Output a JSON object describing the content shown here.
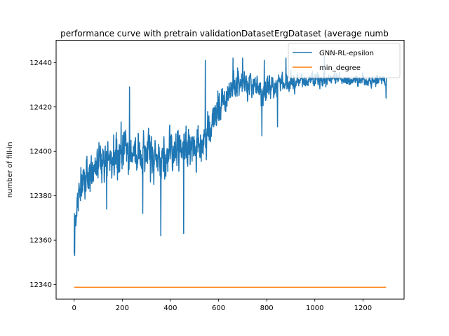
{
  "chart_data": {
    "type": "line",
    "title": "performance curve with pretrain validationDatasetErgDataset (average numb",
    "xlabel": "",
    "ylabel": "number of fill-in",
    "xlim": [
      -75,
      1371
    ],
    "ylim": [
      12333.5,
      12450
    ],
    "xticks": [
      0,
      200,
      400,
      600,
      800,
      1000,
      1200
    ],
    "yticks": [
      12340,
      12360,
      12380,
      12400,
      12420,
      12440
    ],
    "grid": false,
    "legend_position": "top-right",
    "series": [
      {
        "name": "GNN-RL-epsilon",
        "color": "#1f77b4",
        "n_points": 1300,
        "trend_x": [
          0,
          20,
          50,
          100,
          150,
          200,
          250,
          300,
          350,
          400,
          450,
          500,
          550,
          600,
          650,
          700,
          750,
          800,
          850,
          900,
          950,
          1000,
          1100,
          1200,
          1296
        ],
        "trend_y": [
          12365,
          12383,
          12390,
          12393,
          12397,
          12400,
          12399,
          12398,
          12396,
          12398,
          12400,
          12402,
          12405,
          12420,
          12428,
          12430,
          12429,
          12428,
          12430,
          12432,
          12432,
          12432,
          12432,
          12432,
          12432
        ],
        "noise_amplitude": [
          10,
          10,
          11,
          12,
          12,
          12,
          12,
          12,
          12,
          12,
          12,
          12,
          11,
          9,
          8,
          8,
          8,
          8,
          6,
          5,
          4,
          4,
          3,
          3,
          3
        ],
        "spikes": [
          {
            "x": 0,
            "y": 12354
          },
          {
            "x": 2,
            "y": 12353
          },
          {
            "x": 360,
            "y": 12362
          },
          {
            "x": 455,
            "y": 12363
          },
          {
            "x": 285,
            "y": 12372
          },
          {
            "x": 135,
            "y": 12374
          },
          {
            "x": 230,
            "y": 12429
          },
          {
            "x": 545,
            "y": 12441
          },
          {
            "x": 660,
            "y": 12442
          },
          {
            "x": 700,
            "y": 12442
          },
          {
            "x": 790,
            "y": 12441
          },
          {
            "x": 845,
            "y": 12442
          },
          {
            "x": 880,
            "y": 12442
          },
          {
            "x": 1040,
            "y": 12443
          },
          {
            "x": 780,
            "y": 12407
          },
          {
            "x": 845,
            "y": 12411
          },
          {
            "x": 1296,
            "y": 12424
          }
        ]
      },
      {
        "name": "min_degree",
        "color": "#ff7f0e",
        "x": [
          0,
          1296
        ],
        "y": [
          12338.8,
          12338.8
        ]
      }
    ]
  }
}
